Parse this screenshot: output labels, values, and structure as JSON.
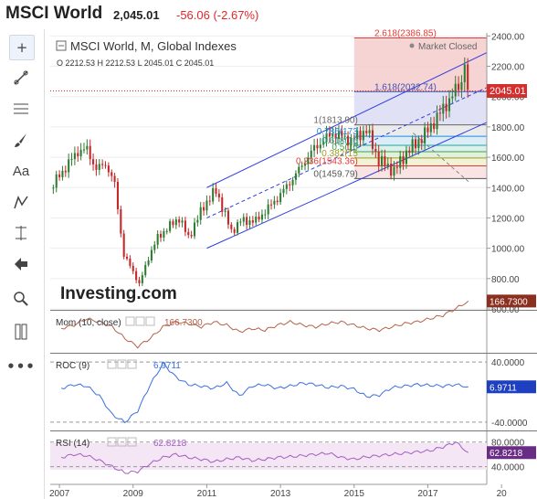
{
  "header": {
    "name": "MSCI World",
    "price": "2,045.01",
    "change": "-56.06 (-2.67%)"
  },
  "toolbar": {
    "icons": [
      "crosshair-icon",
      "trend-line-icon",
      "horizontal-lines-icon",
      "brush-icon",
      "text-icon",
      "pattern-icon",
      "fib-measure-icon",
      "back-arrow-icon",
      "zoom-icon",
      "ruler-icon",
      "more-icon"
    ]
  },
  "main": {
    "title": "MSCI World, M, Global Indexes",
    "ohlc": "O 2212.53  H 2212.53  L 2045.01  C 2045.01",
    "market_status": "Market Closed",
    "last_price_label": "2045.01",
    "watermark": "Investing.com"
  },
  "fib": [
    {
      "label": "2.618(2386.85)",
      "value": 2386.85,
      "color": "#e53935"
    },
    {
      "label": "1.618(2032.74)",
      "value": 2032.74,
      "color": "#3f51b5"
    },
    {
      "label": "1(1813.90)",
      "value": 1813.9,
      "color": "#666666"
    },
    {
      "label": "0.786(173",
      "value": 1738.1,
      "color": "#1e88e5"
    },
    {
      "label": "0.618(16",
      "value": 1678.7,
      "color": "#26a69a"
    },
    {
      "label": "0.5(16",
      "value": 1636.8,
      "color": "#43a047"
    },
    {
      "label": "0.382(15",
      "value": 1595.0,
      "color": "#9e9d24"
    },
    {
      "label": "0.236(1543.36)",
      "value": 1543.36,
      "color": "#e53935"
    },
    {
      "label": "0(1459.79)",
      "value": 1459.79,
      "color": "#555555"
    }
  ],
  "chart_data": {
    "type": "candlestick",
    "title": "MSCI World, M, Global Indexes",
    "x_ticks": [
      "2007",
      "2009",
      "2011",
      "2013",
      "2015",
      "2017",
      "20"
    ],
    "y_ticks": [
      600,
      800,
      1000,
      1200,
      1400,
      1600,
      1800,
      2000,
      2200,
      2400
    ],
    "ylim": [
      600,
      2420
    ],
    "monthly_close": [
      {
        "date": "2006-10",
        "close": 1390
      },
      {
        "date": "2007-01",
        "close": 1480
      },
      {
        "date": "2007-04",
        "close": 1560
      },
      {
        "date": "2007-07",
        "close": 1640
      },
      {
        "date": "2007-10",
        "close": 1650
      },
      {
        "date": "2008-01",
        "close": 1520
      },
      {
        "date": "2008-04",
        "close": 1560
      },
      {
        "date": "2008-07",
        "close": 1420
      },
      {
        "date": "2008-10",
        "close": 950
      },
      {
        "date": "2009-01",
        "close": 850
      },
      {
        "date": "2009-03",
        "close": 760
      },
      {
        "date": "2009-06",
        "close": 940
      },
      {
        "date": "2009-09",
        "close": 1070
      },
      {
        "date": "2009-12",
        "close": 1130
      },
      {
        "date": "2010-04",
        "close": 1200
      },
      {
        "date": "2010-07",
        "close": 1070
      },
      {
        "date": "2010-12",
        "close": 1280
      },
      {
        "date": "2011-04",
        "close": 1380
      },
      {
        "date": "2011-09",
        "close": 1110
      },
      {
        "date": "2011-12",
        "close": 1180
      },
      {
        "date": "2012-05",
        "close": 1180
      },
      {
        "date": "2012-12",
        "close": 1330
      },
      {
        "date": "2013-05",
        "close": 1460
      },
      {
        "date": "2013-12",
        "close": 1660
      },
      {
        "date": "2014-06",
        "close": 1760
      },
      {
        "date": "2014-12",
        "close": 1710
      },
      {
        "date": "2015-05",
        "close": 1780
      },
      {
        "date": "2015-09",
        "close": 1580
      },
      {
        "date": "2016-02",
        "close": 1510
      },
      {
        "date": "2016-06",
        "close": 1630
      },
      {
        "date": "2016-12",
        "close": 1750
      },
      {
        "date": "2017-06",
        "close": 1920
      },
      {
        "date": "2017-12",
        "close": 2100
      },
      {
        "date": "2018-01",
        "close": 2212
      },
      {
        "date": "2018-02",
        "close": 2045
      }
    ],
    "indicators": [
      {
        "name": "Mom (10, close)",
        "value": "166.7300",
        "ylim": [
          -120,
          80
        ],
        "color": "#b5624a",
        "series": [
          0,
          20,
          60,
          40,
          10,
          -60,
          -110,
          -60,
          10,
          40,
          30,
          10,
          40,
          20,
          -20,
          0,
          -10,
          20,
          40,
          20,
          10,
          30,
          40,
          20,
          0,
          -10,
          10,
          30,
          40,
          60,
          80,
          120,
          166.73
        ]
      },
      {
        "name": "ROC (9)",
        "value": "6.9711",
        "ylim": [
          -45,
          45
        ],
        "ticks": [
          "40.0000",
          "-40.0000"
        ],
        "color": "#3a6fe0",
        "series": [
          5,
          10,
          8,
          -5,
          -30,
          -40,
          -25,
          10,
          38,
          20,
          10,
          8,
          5,
          12,
          -5,
          8,
          10,
          5,
          8,
          12,
          10,
          6,
          8,
          4,
          -6,
          -4,
          6,
          8,
          10,
          9,
          8,
          10,
          6.97
        ]
      },
      {
        "name": "RSI (14)",
        "value": "62.8218",
        "ylim": [
          20,
          90
        ],
        "ticks": [
          "80.0000",
          "40.0000"
        ],
        "color": "#a25dc1",
        "series": [
          55,
          60,
          58,
          50,
          40,
          30,
          32,
          45,
          55,
          60,
          55,
          52,
          48,
          52,
          55,
          50,
          52,
          55,
          56,
          58,
          60,
          62,
          55,
          52,
          56,
          58,
          60,
          62,
          64,
          66,
          72,
          80,
          62.82
        ]
      }
    ]
  }
}
